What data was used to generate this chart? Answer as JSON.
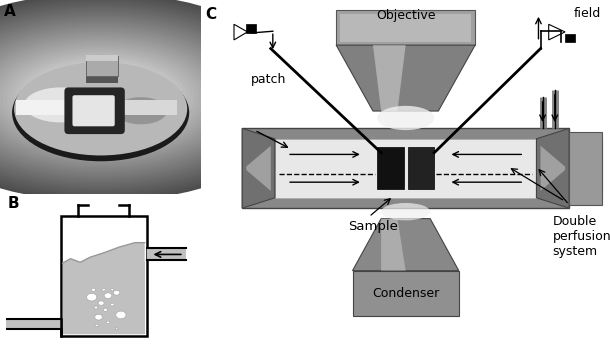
{
  "panel_A_label": "A",
  "panel_B_label": "B",
  "panel_C_label": "C",
  "fig_bg": "#ffffff",
  "label_fontsize": 11,
  "text_fontsize": 8.5,
  "objective_label": "Objective",
  "condenser_label": "Condenser",
  "sample_label": "Sample",
  "double_perfusion_label": "Double\nperfusion\nsystem",
  "field_label": "field",
  "patch_label": "patch"
}
